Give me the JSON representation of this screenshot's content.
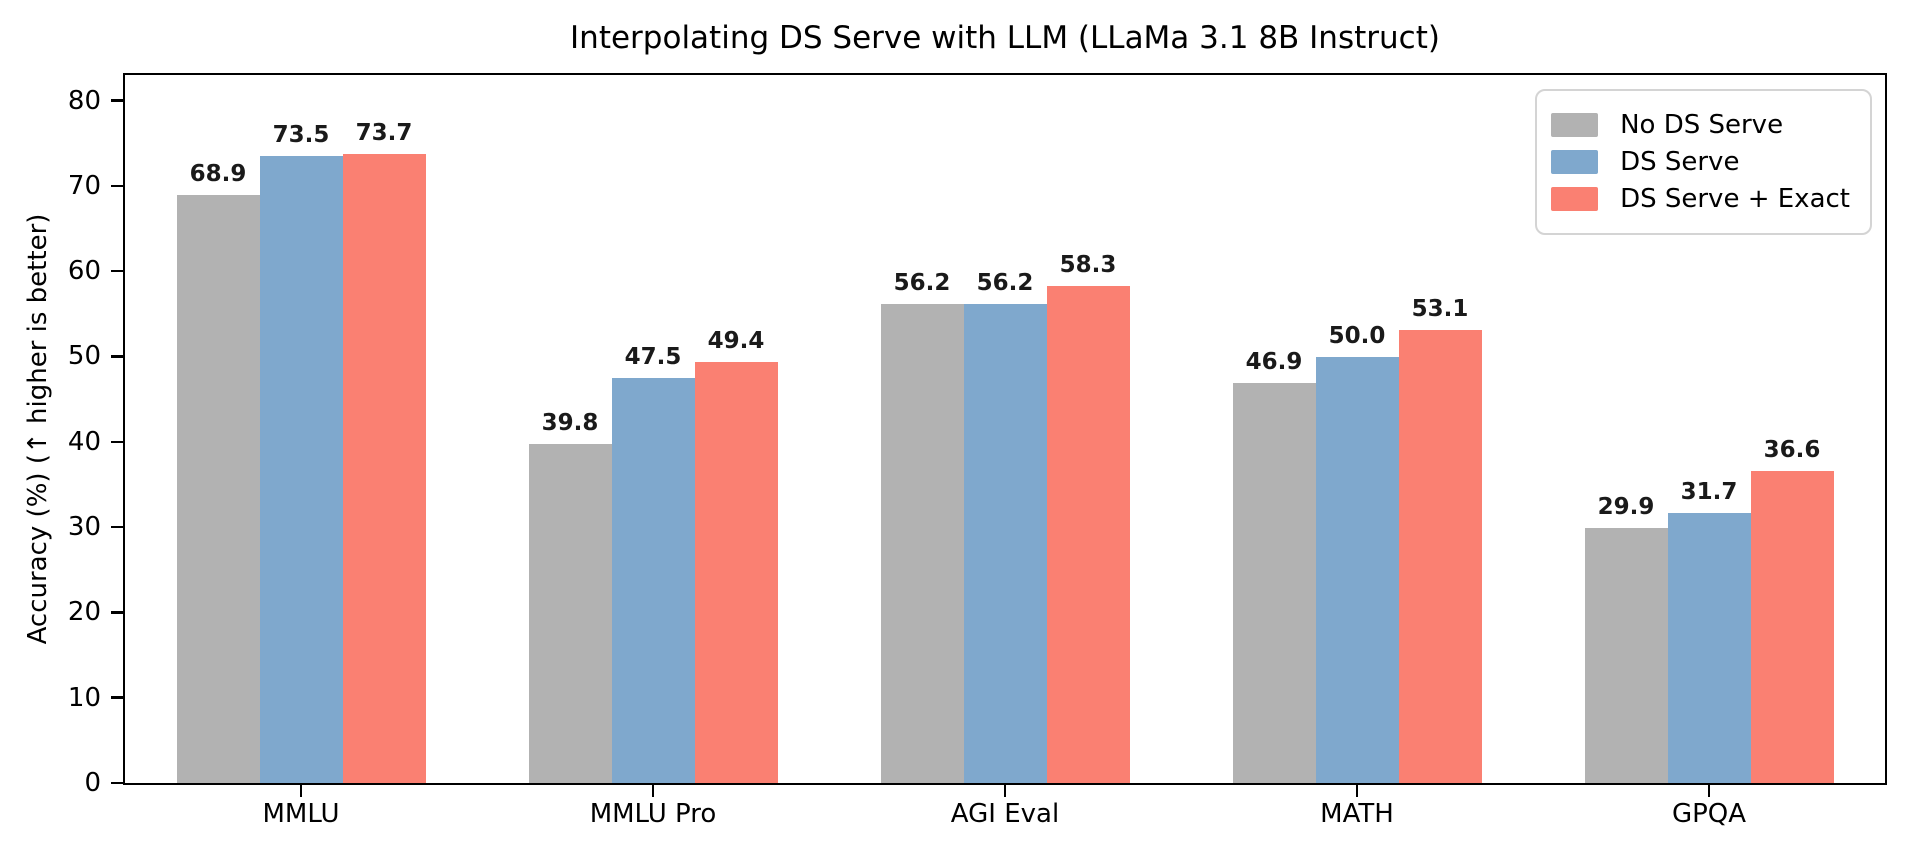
{
  "figure": {
    "background": "#ffffff",
    "axis_color": "#000000",
    "legend_border_color": "#d4d4d4",
    "value_label_color": "#1a1a1a"
  },
  "chart_data": {
    "type": "bar",
    "title": "Interpolating DS Serve with LLM (LLaMa 3.1 8B Instruct)",
    "xlabel": "",
    "ylabel": "Accuracy (%) (↑ higher is better)",
    "categories": [
      "MMLU",
      "MMLU Pro",
      "AGI Eval",
      "MATH",
      "GPQA"
    ],
    "series": [
      {
        "name": "No DS Serve",
        "color": "#b2b2b2",
        "values": [
          68.9,
          39.8,
          56.2,
          46.9,
          29.9
        ]
      },
      {
        "name": "DS Serve",
        "color": "#7fa8cd",
        "values": [
          73.5,
          47.5,
          56.2,
          50.0,
          31.7
        ]
      },
      {
        "name": "DS Serve + Exact",
        "color": "#fa8072",
        "values": [
          73.7,
          49.4,
          58.3,
          53.1,
          36.6
        ]
      }
    ],
    "ylim": [
      0,
      83
    ],
    "yticks": [
      0,
      10,
      20,
      30,
      40,
      50,
      60,
      70,
      80
    ],
    "grid": false,
    "legend_position": "upper right",
    "value_labels": true,
    "value_label_decimals": 1
  }
}
